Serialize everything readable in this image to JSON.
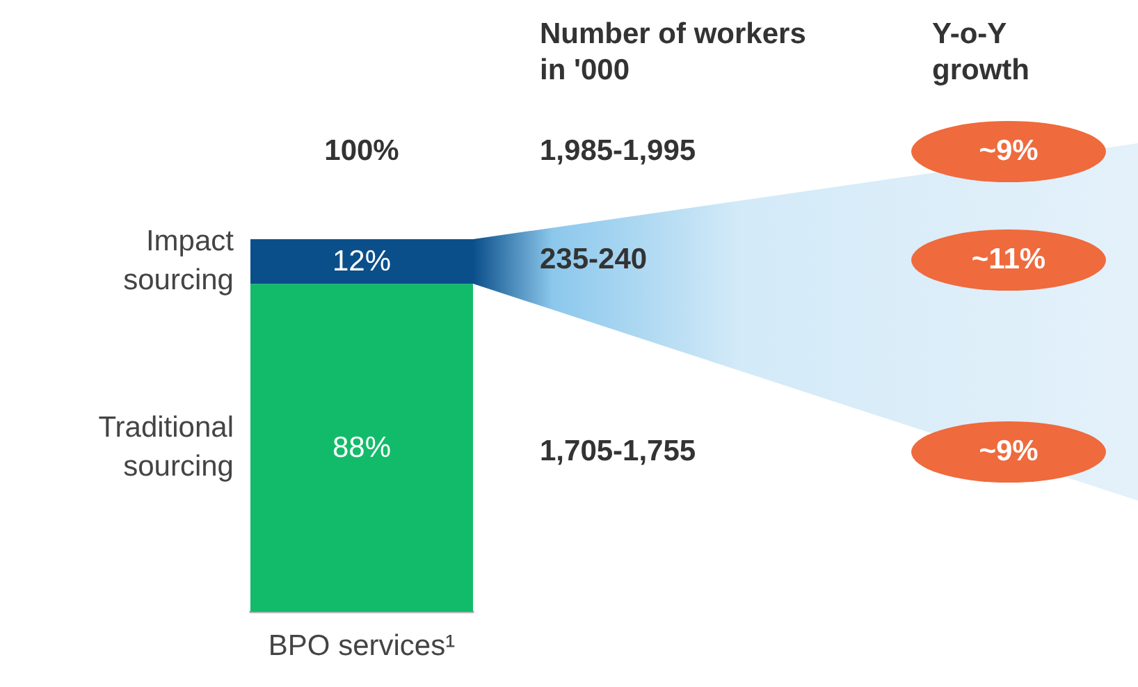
{
  "chart_data": {
    "type": "bar",
    "stacked": true,
    "categories": [
      "BPO services¹"
    ],
    "series": [
      {
        "name": "Traditional sourcing",
        "color": "#12bb6a",
        "values": [
          88
        ],
        "value_labels": [
          "88%"
        ]
      },
      {
        "name": "Impact sourcing",
        "color": "#0b4f8a",
        "values": [
          12
        ],
        "value_labels": [
          "12%"
        ]
      }
    ],
    "totals": [
      "100%"
    ],
    "annotations": [
      "Number of workers in '000",
      "Y-o-Y growth",
      "1,985-1,995",
      "~9%",
      "235-240",
      "~11%",
      "1,705-1,755",
      "~9%"
    ],
    "legend": false
  }
}
